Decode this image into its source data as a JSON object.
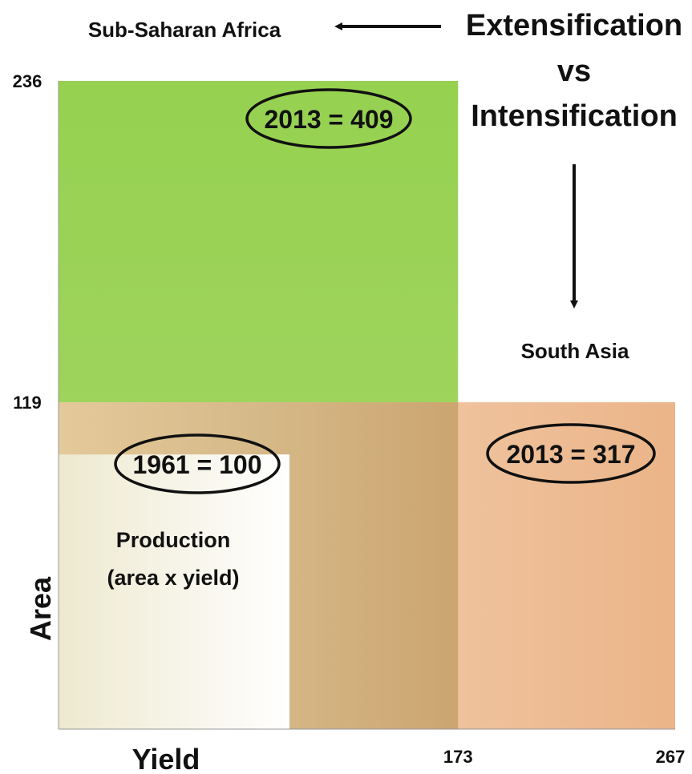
{
  "chart_data": {
    "type": "area",
    "title": "Extensification vs Intensification",
    "xlabel": "Yield",
    "ylabel": "Area",
    "x_ticks": [
      "173",
      "267"
    ],
    "y_ticks": [
      "236",
      "119"
    ],
    "xlim": [
      0,
      267
    ],
    "ylim": [
      0,
      236
    ],
    "regions": [
      {
        "name": "Sub-Saharan Africa",
        "yield": 173,
        "area": 236,
        "label": "2013 = 409",
        "color": "#8fcf4a"
      },
      {
        "name": "South Asia",
        "yield": 267,
        "area": 119,
        "label": "2013 = 317",
        "color": "#e8a778"
      },
      {
        "name": "1961",
        "yield": 100,
        "area": 100,
        "label": "1961 = 100",
        "color": "#f2efde"
      }
    ],
    "annotations": {
      "ssa": "Sub-Saharan Africa",
      "south_asia": "South Asia",
      "title_line1": "Extensification",
      "title_line2": "vs",
      "title_line3": "Intensification",
      "production_line1": "Production",
      "production_line2": "(area x yield)"
    }
  }
}
